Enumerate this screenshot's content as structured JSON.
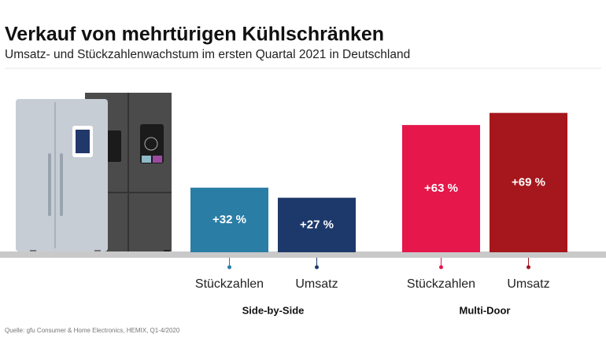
{
  "chart_data": {
    "type": "bar",
    "title": "Verkauf von mehrtürigen Kühlschränken",
    "subtitle": "Umsatz- und Stückzahlenwachstum im ersten Quartal 2021 in Deutschland",
    "source": "Quelle: gfu Consumer & Home Electronics, HEMIX, Q1-4/2020",
    "groups": [
      {
        "name": "Side-by-Side",
        "categories": [
          "Stückzahlen",
          "Umsatz"
        ],
        "values": [
          32,
          27
        ],
        "value_labels": [
          "+32 %",
          "+27 %"
        ],
        "colors": [
          "#2a7ea6",
          "#1d396b"
        ]
      },
      {
        "name": "Multi-Door",
        "categories": [
          "Stückzahlen",
          "Umsatz"
        ],
        "values": [
          63,
          69
        ],
        "value_labels": [
          "+63 %",
          "+69 %"
        ],
        "colors": [
          "#e5174b",
          "#a5171c"
        ]
      }
    ]
  }
}
